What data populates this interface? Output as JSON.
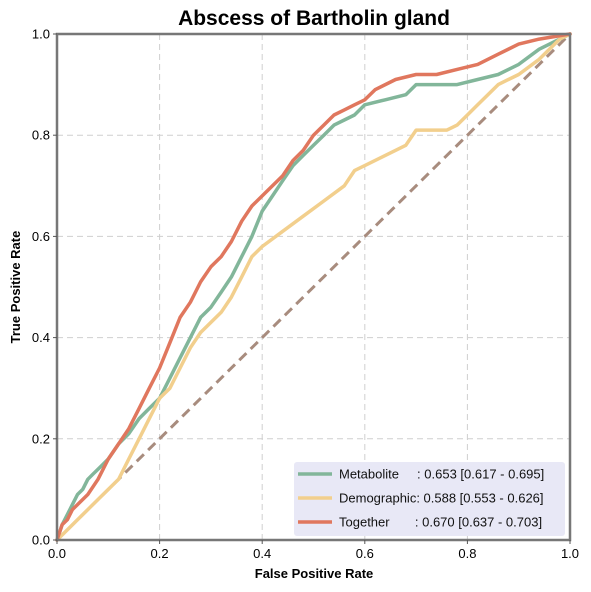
{
  "chart_data": {
    "type": "line",
    "title": "Abscess of Bartholin gland",
    "xlabel": "False Positive Rate",
    "ylabel": "True Positive Rate",
    "xlim": [
      0,
      1
    ],
    "ylim": [
      0,
      1
    ],
    "xticks": [
      "0.0",
      "0.2",
      "0.4",
      "0.6",
      "0.8",
      "1.0"
    ],
    "yticks": [
      "0.0",
      "0.2",
      "0.4",
      "0.6",
      "0.8",
      "1.0"
    ],
    "grid": true,
    "legend_position": "lower-right",
    "legend_background": "#e8e8f6",
    "diagonal": {
      "x": [
        0,
        1
      ],
      "y": [
        0,
        1
      ],
      "color": "#a88c7e",
      "style": "dashed"
    },
    "series": [
      {
        "name": "Metabolite",
        "legend_label": "Metabolite     : 0.653 [0.617 - 0.695]",
        "color": "#82b69a",
        "x": [
          0,
          0.01,
          0.02,
          0.03,
          0.04,
          0.05,
          0.06,
          0.07,
          0.08,
          0.09,
          0.1,
          0.12,
          0.14,
          0.16,
          0.18,
          0.2,
          0.22,
          0.24,
          0.26,
          0.28,
          0.3,
          0.32,
          0.34,
          0.36,
          0.38,
          0.4,
          0.42,
          0.44,
          0.46,
          0.48,
          0.5,
          0.52,
          0.54,
          0.56,
          0.58,
          0.6,
          0.64,
          0.68,
          0.7,
          0.74,
          0.78,
          0.82,
          0.86,
          0.9,
          0.94,
          1.0
        ],
        "y": [
          0,
          0.03,
          0.05,
          0.07,
          0.09,
          0.1,
          0.12,
          0.13,
          0.14,
          0.15,
          0.16,
          0.19,
          0.21,
          0.24,
          0.26,
          0.28,
          0.32,
          0.36,
          0.4,
          0.44,
          0.46,
          0.49,
          0.52,
          0.56,
          0.6,
          0.65,
          0.68,
          0.71,
          0.74,
          0.76,
          0.78,
          0.8,
          0.82,
          0.83,
          0.84,
          0.86,
          0.87,
          0.88,
          0.9,
          0.9,
          0.9,
          0.91,
          0.92,
          0.94,
          0.97,
          1.0
        ]
      },
      {
        "name": "Demographic",
        "legend_label": "Demographic: 0.588 [0.553 - 0.626]",
        "color": "#f2cf8d",
        "x": [
          0,
          0.02,
          0.04,
          0.06,
          0.08,
          0.1,
          0.12,
          0.14,
          0.16,
          0.18,
          0.2,
          0.22,
          0.24,
          0.26,
          0.28,
          0.3,
          0.32,
          0.34,
          0.36,
          0.38,
          0.4,
          0.44,
          0.48,
          0.52,
          0.56,
          0.58,
          0.6,
          0.64,
          0.68,
          0.7,
          0.74,
          0.76,
          0.78,
          0.8,
          0.82,
          0.84,
          0.86,
          0.88,
          0.9,
          0.94,
          0.98,
          1.0
        ],
        "y": [
          0,
          0.02,
          0.04,
          0.06,
          0.08,
          0.1,
          0.12,
          0.16,
          0.2,
          0.24,
          0.28,
          0.3,
          0.34,
          0.38,
          0.41,
          0.43,
          0.45,
          0.48,
          0.52,
          0.56,
          0.58,
          0.61,
          0.64,
          0.67,
          0.7,
          0.73,
          0.74,
          0.76,
          0.78,
          0.81,
          0.81,
          0.81,
          0.82,
          0.84,
          0.86,
          0.88,
          0.9,
          0.91,
          0.92,
          0.95,
          0.99,
          1.0
        ]
      },
      {
        "name": "Together",
        "legend_label": "Together       : 0.670 [0.637 - 0.703]",
        "color": "#e0775e",
        "x": [
          0,
          0.01,
          0.02,
          0.03,
          0.04,
          0.06,
          0.08,
          0.1,
          0.12,
          0.14,
          0.16,
          0.18,
          0.2,
          0.22,
          0.24,
          0.26,
          0.28,
          0.3,
          0.32,
          0.34,
          0.36,
          0.38,
          0.4,
          0.42,
          0.44,
          0.46,
          0.48,
          0.5,
          0.52,
          0.54,
          0.56,
          0.58,
          0.6,
          0.62,
          0.66,
          0.7,
          0.74,
          0.78,
          0.82,
          0.86,
          0.9,
          0.94,
          1.0
        ],
        "y": [
          0,
          0.03,
          0.04,
          0.06,
          0.07,
          0.09,
          0.12,
          0.16,
          0.19,
          0.22,
          0.26,
          0.3,
          0.34,
          0.39,
          0.44,
          0.47,
          0.51,
          0.54,
          0.56,
          0.59,
          0.63,
          0.66,
          0.68,
          0.7,
          0.72,
          0.75,
          0.77,
          0.8,
          0.82,
          0.84,
          0.85,
          0.86,
          0.87,
          0.89,
          0.91,
          0.92,
          0.92,
          0.93,
          0.94,
          0.96,
          0.98,
          0.99,
          1.0
        ]
      }
    ]
  }
}
